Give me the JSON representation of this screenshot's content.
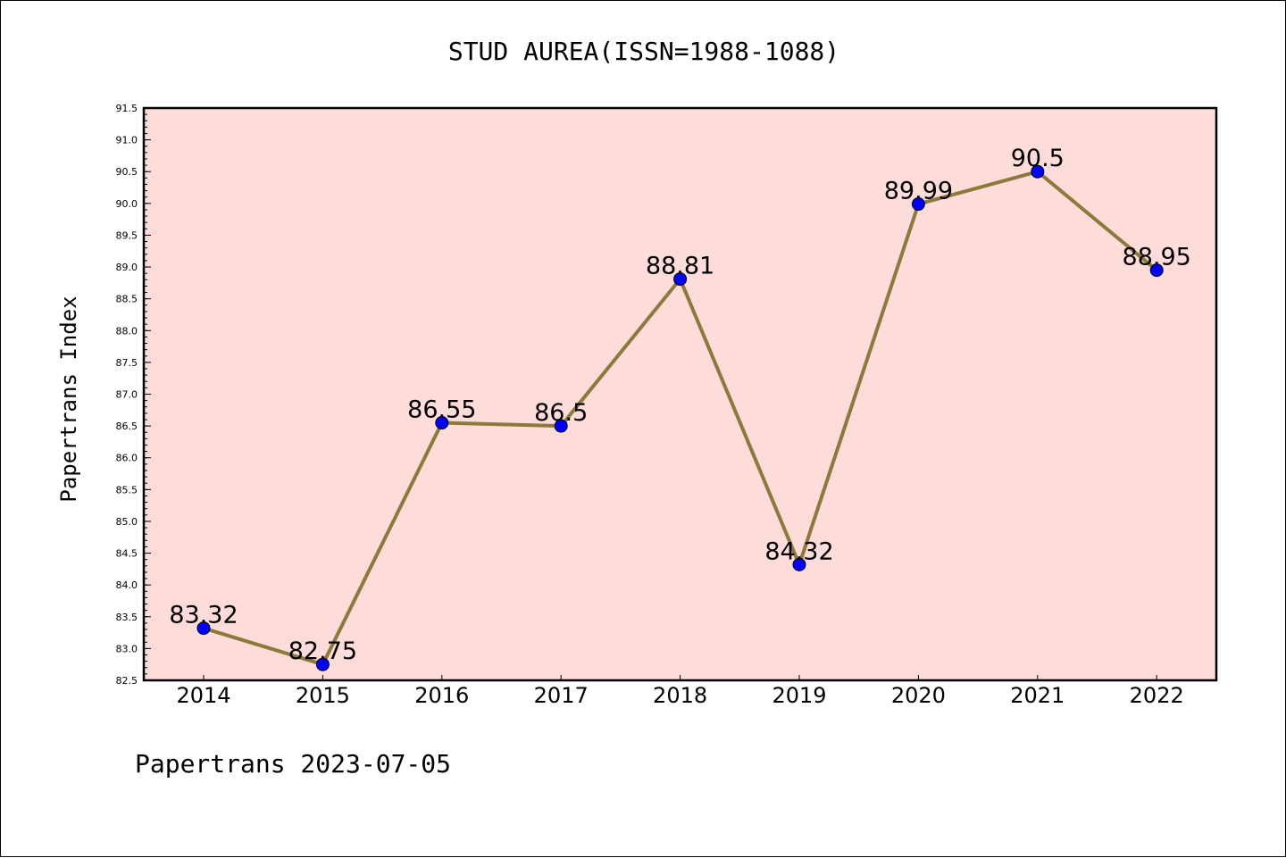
{
  "chart_data": {
    "type": "line",
    "title": "STUD AUREA(ISSN=1988-1088)",
    "xlabel": "",
    "ylabel": "Papertrans Index",
    "categories": [
      "2014",
      "2015",
      "2016",
      "2017",
      "2018",
      "2019",
      "2020",
      "2021",
      "2022"
    ],
    "series": [
      {
        "values": [
          83.32,
          82.75,
          86.55,
          86.5,
          88.81,
          84.32,
          89.99,
          90.5,
          88.95
        ],
        "data_labels": [
          "83.32",
          "82.75",
          "86.55",
          "86.5",
          "88.81",
          "84.32",
          "89.99",
          "90.5",
          "88.95"
        ],
        "line_color": "#8b7a3a",
        "marker_color": "#0000ff"
      }
    ],
    "ylim": [
      82.5,
      91.5
    ],
    "yticks": [
      "82.5",
      "83.0",
      "83.5",
      "84.0",
      "84.5",
      "85.0",
      "85.5",
      "86.0",
      "86.5",
      "87.0",
      "87.5",
      "88.0",
      "88.5",
      "89.0",
      "89.5",
      "90.0",
      "90.5",
      "91.0",
      "91.5"
    ],
    "plot_background": "#fddcda",
    "grid": false,
    "legend": "none"
  },
  "footer": {
    "text": "Papertrans 2023-07-05"
  }
}
